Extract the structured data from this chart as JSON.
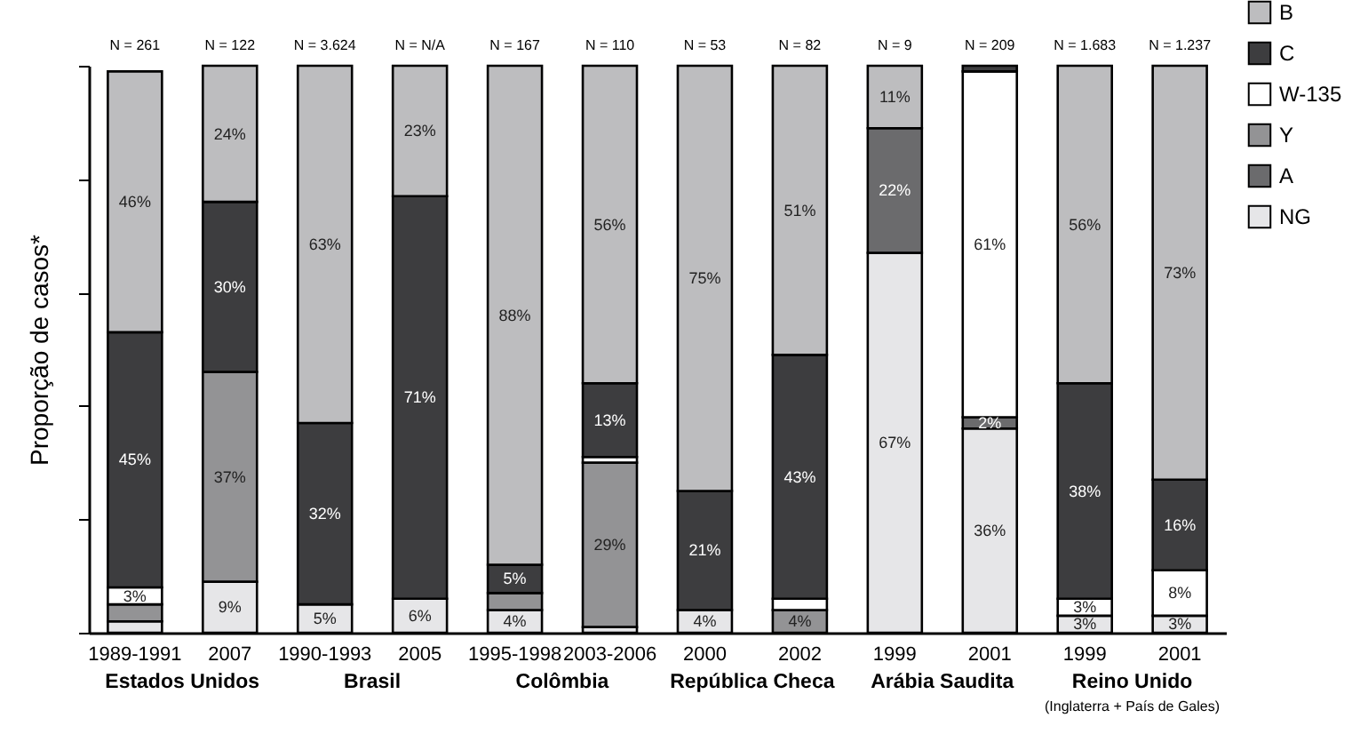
{
  "chart_data": {
    "type": "bar",
    "stacked": true,
    "ylabel": "Proporção de casos*",
    "categories": [
      "1989-1991",
      "2007",
      "1990-1993",
      "2005",
      "1995-1998",
      "2003-2006",
      "2000",
      "2002",
      "1999",
      "2001",
      "1999",
      "2001"
    ],
    "series": [
      {
        "name": "NG",
        "color": "#e6e6e8",
        "values": [
          2,
          9,
          5,
          6,
          4,
          1,
          4,
          null,
          67,
          36,
          3,
          3
        ],
        "value_labels": [
          null,
          "9%",
          "5%",
          "6%",
          "4%",
          null,
          "4%",
          null,
          "67%",
          "36%",
          "3%",
          "3%"
        ]
      },
      {
        "name": "A",
        "color": "#6b6b6d",
        "values": [
          null,
          null,
          null,
          null,
          null,
          null,
          null,
          null,
          22,
          2,
          null,
          null
        ],
        "value_labels": [
          null,
          null,
          null,
          null,
          null,
          null,
          null,
          null,
          "22%",
          "2%",
          null,
          null
        ]
      },
      {
        "name": "Y",
        "color": "#939395",
        "values": [
          3,
          37,
          null,
          null,
          3,
          29,
          null,
          4,
          null,
          null,
          null,
          null
        ],
        "value_labels": [
          null,
          "37%",
          null,
          null,
          null,
          "29%",
          null,
          "4%",
          null,
          null,
          null,
          null
        ]
      },
      {
        "name": "W-135",
        "color": "#ffffff",
        "values": [
          3,
          null,
          null,
          null,
          null,
          1,
          null,
          2,
          null,
          61,
          3,
          8
        ],
        "value_labels": [
          "3%",
          null,
          null,
          null,
          null,
          null,
          null,
          null,
          null,
          "61%",
          "3%",
          "8%"
        ]
      },
      {
        "name": "C",
        "color": "#3d3d3f",
        "values": [
          45,
          30,
          32,
          71,
          5,
          13,
          21,
          43,
          null,
          1,
          38,
          16
        ],
        "value_labels": [
          "45%",
          "30%",
          "32%",
          "71%",
          "5%",
          "13%",
          "21%",
          "43%",
          null,
          null,
          "38%",
          "16%"
        ]
      },
      {
        "name": "B",
        "color": "#bdbdbf",
        "values": [
          46,
          24,
          63,
          23,
          88,
          56,
          75,
          51,
          11,
          null,
          56,
          73
        ],
        "value_labels": [
          "46%",
          "24%",
          "63%",
          "23%",
          "88%",
          "56%",
          "75%",
          "51%",
          "11%",
          null,
          "56%",
          "73%"
        ]
      }
    ],
    "ylim": [
      0,
      100
    ],
    "yticks": [
      {
        "value": 0,
        "label": null
      },
      {
        "value": 20,
        "label": null
      },
      {
        "value": 40,
        "label": null
      },
      {
        "value": 60,
        "label": null
      },
      {
        "value": 80,
        "label": null
      },
      {
        "value": 100,
        "label": null
      }
    ],
    "tick_labels": "x",
    "legend": "top right",
    "grid": false,
    "annotations": [
      "N = 261",
      "N = 122",
      "N = 3.624",
      "N = N/A",
      "N = 167",
      "N = 110",
      "N = 53",
      "N = 82",
      "N = 9",
      "N = 209",
      "N = 1.683",
      "N = 1.237",
      "Estados Unidos",
      "Brasil",
      "Colômbia",
      "República Checa",
      "Arábia Saudita",
      "Reino Unido",
      "(Inglaterra + País de Gales)"
    ]
  }
}
